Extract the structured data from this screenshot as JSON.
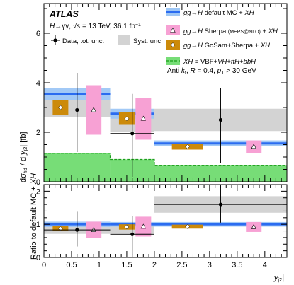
{
  "chart_data": [
    {
      "type": "histogram",
      "panel": "main",
      "ylabel": "dσ_fid / d|y_j2| [fb]",
      "xlim": [
        0,
        4.4
      ],
      "ylim": [
        0,
        7.2
      ],
      "yticks": [
        0,
        2,
        4,
        6
      ],
      "bins": [
        [
          0,
          1.2
        ],
        [
          1.2,
          2.0
        ],
        [
          2.0,
          4.4
        ]
      ],
      "atlas_label": "ATLAS",
      "info_lines": [
        "H→γγ, √s = 13 TeV,  36.1 fb⁻¹",
        "Anti kt R = 0.4, pT > 30 GeV"
      ],
      "data": {
        "name": "Data, tot. unc.",
        "x": [
          0.6,
          1.6,
          3.2
        ],
        "y": [
          2.9,
          1.95,
          2.5
        ],
        "err": [
          [
            1.7,
            1.5
          ],
          [
            1.75,
            1.6
          ],
          [
            1.75,
            1.3
          ]
        ],
        "xerr": [
          [
            0.6,
            0.6
          ],
          [
            0.4,
            0.4
          ],
          [
            1.2,
            1.2
          ]
        ]
      },
      "syst": {
        "name": "Syst. unc.",
        "y": [
          2.95,
          2.35,
          2.5
        ],
        "err": [
          0.35,
          0.35,
          0.45
        ]
      },
      "default_mc": {
        "name": "gg→H default MC + XH",
        "color": "#2b6cf0",
        "band": "#9dc6f5",
        "y": [
          3.55,
          2.75,
          1.55
        ],
        "err": [
          0.25,
          0.2,
          0.12
        ]
      },
      "sherpa": {
        "name": "gg→H Sherpa (MEPS@NLO) + XH",
        "color": "#f7a1d4",
        "x": [
          0.9,
          1.8,
          3.8
        ],
        "y": [
          2.9,
          2.55,
          1.42
        ],
        "err": [
          [
            1.0,
            1.0
          ],
          [
            0.85,
            0.85
          ],
          [
            0.25,
            0.25
          ]
        ]
      },
      "gosam": {
        "name": "gg→H GoSam+Sherpa + XH",
        "color": "#cc8a0a",
        "x": [
          0.3,
          1.5,
          2.6
        ],
        "y": [
          3.0,
          2.55,
          1.42
        ],
        "err": [
          [
            0.3,
            0.3
          ],
          [
            0.25,
            0.25
          ],
          [
            0.12,
            0.12
          ]
        ]
      },
      "xh": {
        "name": "XH = VBF+VH+ttH+bbH",
        "fill": "#77dd77",
        "line": "#1a9e1a",
        "values": [
          1.15,
          0.9,
          0.65
        ]
      }
    },
    {
      "type": "ratio",
      "panel": "ratio",
      "ylabel": "Ratio to default MC + XH",
      "xlabel": "|y_j2|",
      "xlim": [
        0,
        4.4
      ],
      "ylim": [
        0,
        2.2
      ],
      "yticks": [
        0,
        1,
        2
      ],
      "xticks": [
        0,
        0.5,
        1,
        1.5,
        2,
        2.5,
        3,
        3.5,
        4
      ],
      "data": {
        "x": [
          0.6,
          1.6,
          3.2
        ],
        "y": [
          0.83,
          0.7,
          1.6
        ],
        "err": [
          [
            0.5,
            0.55
          ],
          [
            0.6,
            0.55
          ],
          [
            0.55,
            0.55
          ]
        ]
      },
      "syst": {
        "y": [
          0.83,
          0.86,
          1.6
        ],
        "err": [
          0.12,
          0.12,
          0.25
        ]
      },
      "default_mc": {
        "y": [
          1.0,
          1.0,
          1.0
        ],
        "err": [
          0.08,
          0.07,
          0.07
        ]
      },
      "sherpa": {
        "x": [
          0.9,
          1.8,
          3.8
        ],
        "y": [
          0.83,
          0.93,
          0.92
        ],
        "err": [
          [
            0.25,
            0.25
          ],
          [
            0.3,
            0.3
          ],
          [
            0.15,
            0.15
          ]
        ]
      },
      "gosam": {
        "x": [
          0.3,
          1.5,
          2.6
        ],
        "y": [
          0.87,
          0.92,
          0.93
        ],
        "err": [
          [
            0.08,
            0.08
          ],
          [
            0.08,
            0.08
          ],
          [
            0.06,
            0.06
          ]
        ]
      }
    }
  ]
}
